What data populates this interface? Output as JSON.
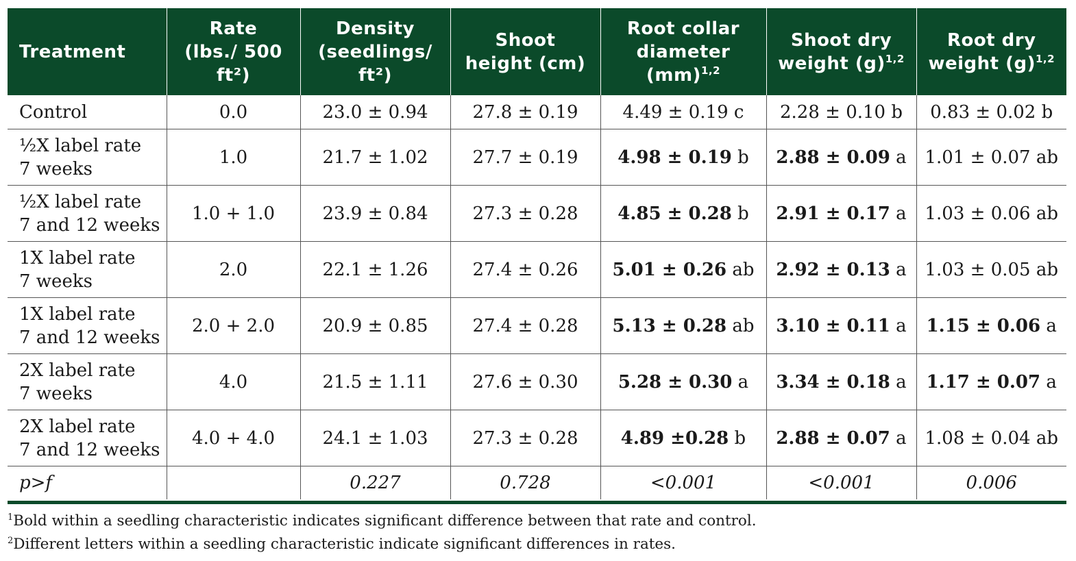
{
  "headers": [
    {
      "text": "Treatment",
      "sup": ""
    },
    {
      "text": "Rate (lbs./ 500 ft²)",
      "sup": ""
    },
    {
      "text": "Density (seedlings/ ft²)",
      "sup": ""
    },
    {
      "text": "Shoot height (cm)",
      "sup": ""
    },
    {
      "text": "Root collar diameter (mm)",
      "sup": "1,2"
    },
    {
      "text": "Shoot dry weight (g)",
      "sup": "1,2"
    },
    {
      "text": "Root dry weight (g)",
      "sup": "1,2"
    }
  ],
  "rows": [
    {
      "treatment": [
        "Control"
      ],
      "rate": "0.0",
      "density": "23.0 ± 0.94",
      "shoot_height": "27.8 ± 0.19",
      "root_collar": {
        "value": "4.49 ± 0.19",
        "letter": "c",
        "bold": false
      },
      "shoot_dry": {
        "value": "2.28 ± 0.10",
        "letter": "b",
        "bold": false
      },
      "root_dry": {
        "value": "0.83 ± 0.02",
        "letter": "b",
        "bold": false
      }
    },
    {
      "treatment": [
        "½X label rate",
        "7 weeks"
      ],
      "rate": "1.0",
      "density": "21.7  ± 1.02",
      "shoot_height": "27.7 ± 0.19",
      "root_collar": {
        "value": "4.98 ± 0.19",
        "letter": "b",
        "bold": true
      },
      "shoot_dry": {
        "value": "2.88 ± 0.09",
        "letter": "a",
        "bold": true
      },
      "root_dry": {
        "value": "1.01 ± 0.07",
        "letter": "ab",
        "bold": false
      }
    },
    {
      "treatment": [
        "½X label rate",
        "7 and 12 weeks"
      ],
      "rate": "1.0 + 1.0",
      "density": "23.9 ± 0.84",
      "shoot_height": "27.3 ± 0.28",
      "root_collar": {
        "value": "4.85 ± 0.28",
        "letter": "b",
        "bold": true
      },
      "shoot_dry": {
        "value": "2.91 ± 0.17",
        "letter": "a",
        "bold": true
      },
      "root_dry": {
        "value": "1.03 ± 0.06",
        "letter": "ab",
        "bold": false
      }
    },
    {
      "treatment": [
        "1X label rate",
        "7 weeks"
      ],
      "rate": "2.0",
      "density": "22.1 ± 1.26",
      "shoot_height": "27.4 ± 0.26",
      "root_collar": {
        "value": "5.01 ± 0.26",
        "letter": "ab",
        "bold": true
      },
      "shoot_dry": {
        "value": "2.92 ± 0.13",
        "letter": "a",
        "bold": true
      },
      "root_dry": {
        "value": "1.03 ± 0.05",
        "letter": "ab",
        "bold": false
      }
    },
    {
      "treatment": [
        "1X label rate",
        "7 and 12 weeks"
      ],
      "rate": "2.0 + 2.0",
      "density": "20.9 ± 0.85",
      "shoot_height": "27.4 ± 0.28",
      "root_collar": {
        "value": "5.13 ± 0.28",
        "letter": "ab",
        "bold": true
      },
      "shoot_dry": {
        "value": "3.10 ± 0.11",
        "letter": "a",
        "bold": true
      },
      "root_dry": {
        "value": "1.15 ± 0.06",
        "letter": "a",
        "bold": true
      }
    },
    {
      "treatment": [
        "2X label rate",
        "7 weeks"
      ],
      "rate": "4.0",
      "density": "21.5 ± 1.11",
      "shoot_height": "27.6 ± 0.30",
      "root_collar": {
        "value": "5.28 ± 0.30",
        "letter": "a",
        "bold": true
      },
      "shoot_dry": {
        "value": "3.34 ± 0.18",
        "letter": "a",
        "bold": true
      },
      "root_dry": {
        "value": "1.17 ± 0.07",
        "letter": "a",
        "bold": true
      }
    },
    {
      "treatment": [
        "2X label rate",
        "7 and 12 weeks"
      ],
      "rate": "4.0 + 4.0",
      "density": "24.1 ± 1.03",
      "shoot_height": "27.3 ± 0.28",
      "root_collar": {
        "value": "4.89 ±0.28",
        "letter": "b",
        "bold": true
      },
      "shoot_dry": {
        "value": "2.88 ± 0.07",
        "letter": "a",
        "bold": true
      },
      "root_dry": {
        "value": "1.08 ± 0.04",
        "letter": "ab",
        "bold": false
      }
    }
  ],
  "pvalues": {
    "label": "p>f",
    "rate": "",
    "density": "0.227",
    "shoot_height": "0.728",
    "root_collar": "<0.001",
    "shoot_dry": "<0.001",
    "root_dry": "0.006"
  },
  "footnotes": [
    {
      "marker": "1",
      "text": "Bold within a seedling characteristic indicates significant difference between that rate and control."
    },
    {
      "marker": "2",
      "text": "Different letters within a seedling characteristic indicate significant differences in rates."
    }
  ],
  "colors": {
    "header_bg": "#0b4a2a",
    "header_text": "#ffffff"
  }
}
